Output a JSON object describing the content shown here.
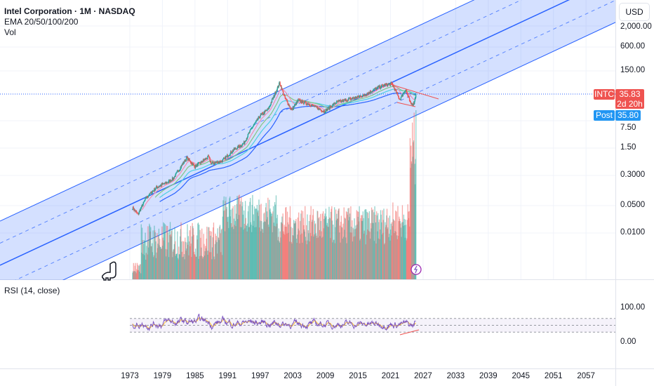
{
  "header": {
    "title": "Intel Corporation · 1M · NASDAQ",
    "indicator": "EMA 20/50/100/200",
    "volume": "Vol"
  },
  "rsi_pane": {
    "title": "RSI (14, close)",
    "ticks": [
      "100.00",
      "0.00"
    ]
  },
  "price_axis": {
    "currency": "USD",
    "ticks": [
      "2,000.00",
      "600.00",
      "150.00",
      "7.50",
      "1.50",
      "0.3000",
      "0.0500",
      "0.0100"
    ]
  },
  "price_tags": {
    "symbol": "INTC",
    "last_price": "35.83",
    "countdown": "2d 20h",
    "post_label": "Post",
    "post_price": "35.80"
  },
  "time_axis": {
    "ticks": [
      "1973",
      "1979",
      "1985",
      "1991",
      "1997",
      "2003",
      "2009",
      "2015",
      "2021",
      "2027",
      "2033",
      "2039",
      "2045",
      "2051",
      "2057"
    ]
  },
  "colors": {
    "up": "#26a69a",
    "down": "#ef5350",
    "channel": "#2962ff",
    "rsi": "#7e57c2",
    "rsi_ma": "#fbc02d",
    "post": "#2196f3"
  },
  "chart_data": {
    "type": "candlestick",
    "title": "Intel Corporation · 1M · NASDAQ",
    "yscale": "log",
    "ylim": [
      0.0015,
      3000
    ],
    "xlim": [
      1949,
      2063
    ],
    "price_anchors": [
      [
        1973.5,
        0.045
      ],
      [
        1974.5,
        0.03
      ],
      [
        1976,
        0.08
      ],
      [
        1978,
        0.15
      ],
      [
        1980,
        0.2
      ],
      [
        1981,
        0.25
      ],
      [
        1983.5,
        0.85
      ],
      [
        1985,
        0.5
      ],
      [
        1987.5,
        0.9
      ],
      [
        1988,
        0.6
      ],
      [
        1990,
        0.7
      ],
      [
        1992,
        1.3
      ],
      [
        1994,
        2.0
      ],
      [
        1995.5,
        5
      ],
      [
        1997,
        10
      ],
      [
        1998.5,
        15
      ],
      [
        2000.6,
        70
      ],
      [
        2001.5,
        30
      ],
      [
        2002.8,
        14
      ],
      [
        2004,
        25
      ],
      [
        2006,
        20
      ],
      [
        2008.8,
        13
      ],
      [
        2011,
        22
      ],
      [
        2014,
        28
      ],
      [
        2016,
        33
      ],
      [
        2018.3,
        50
      ],
      [
        2020,
        62
      ],
      [
        2021.3,
        66
      ],
      [
        2022.7,
        26
      ],
      [
        2023.8,
        48
      ],
      [
        2024.7,
        20
      ],
      [
        2025.3,
        21
      ],
      [
        2025.7,
        35.83
      ]
    ],
    "last_price": 35.83,
    "rsi_levels": [
      70,
      50,
      30
    ]
  }
}
